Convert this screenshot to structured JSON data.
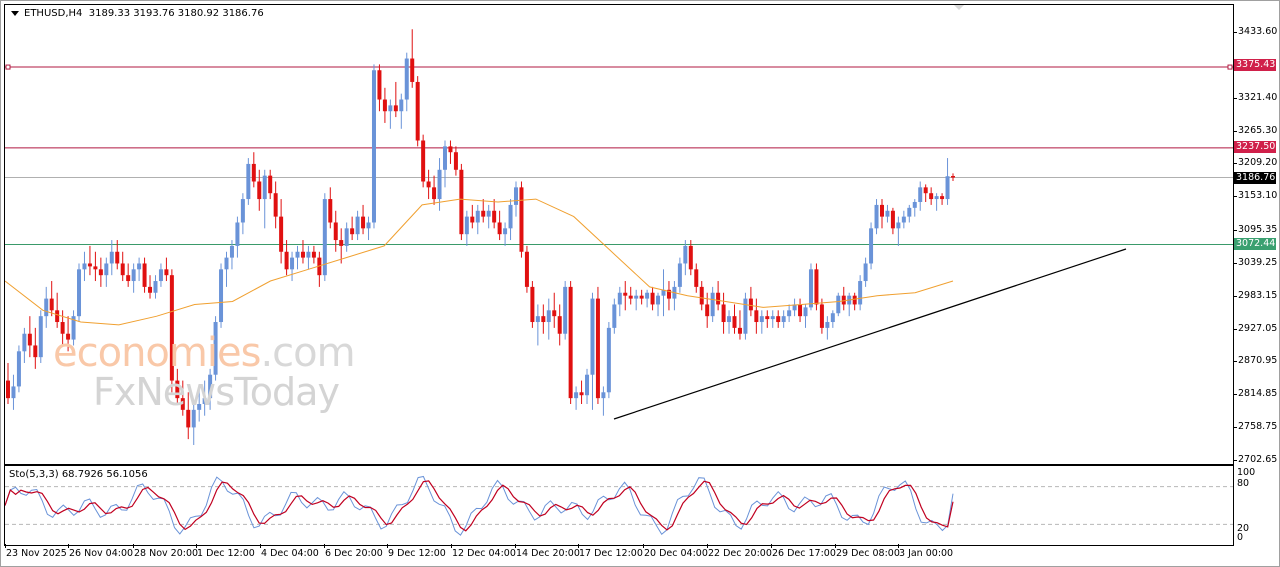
{
  "header": {
    "symbol": "ETHUSD,H4",
    "ohlc": "3189.33 3193.76 3180.92 3186.76"
  },
  "indicator": {
    "label": "Sto(5,3,3) 68.7926 56.1056",
    "levels": [
      "100",
      "80",
      "20",
      "0"
    ]
  },
  "watermark": {
    "line1_a": "economies",
    "line1_b": ".com",
    "line2": "FxNewsToday"
  },
  "colors": {
    "bull": "#6a93d8",
    "bear": "#e01010",
    "ma": "#f0a030",
    "resistance1": "#b01840",
    "resistance2": "#b01840",
    "support": "#3a9a6a",
    "current": "#b0b0b0",
    "trendline": "#000000",
    "sto_main": "#6a93d8",
    "sto_signal": "#c00020"
  },
  "price_axis": {
    "ticks": [
      "3433.60",
      "3321.40",
      "3265.30",
      "3209.20",
      "3153.10",
      "3095.35",
      "3039.25",
      "2983.15",
      "2927.05",
      "2870.95",
      "2814.85",
      "2758.75",
      "2702.65"
    ]
  },
  "price_tags": {
    "r1": "3375.43",
    "r2": "3237.50",
    "current": "3186.76",
    "support": "3072.44"
  },
  "time_axis": {
    "labels": [
      "23 Nov 2025",
      "26 Nov 04:00",
      "28 Nov 20:00",
      "1 Dec 12:00",
      "4 Dec 04:00",
      "6 Dec 20:00",
      "9 Dec 12:00",
      "12 Dec 04:00",
      "14 Dec 20:00",
      "17 Dec 12:00",
      "20 Dec 04:00",
      "22 Dec 20:00",
      "26 Dec 17:00",
      "29 Dec 08:00",
      "3 Jan 00:00"
    ]
  },
  "chart_data": {
    "type": "candlestick",
    "title": "ETHUSD,H4",
    "ohlc_last": {
      "open": 3189.33,
      "high": 3193.76,
      "low": 3180.92,
      "close": 3186.76
    },
    "xlabel": "",
    "ylabel": "",
    "ylim": [
      2702.65,
      3433.6
    ],
    "x_ticks": [
      "23 Nov 2025",
      "26 Nov 04:00",
      "28 Nov 20:00",
      "1 Dec 12:00",
      "4 Dec 04:00",
      "6 Dec 20:00",
      "9 Dec 12:00",
      "12 Dec 04:00",
      "14 Dec 20:00",
      "17 Dec 12:00",
      "20 Dec 04:00",
      "22 Dec 20:00",
      "26 Dec 17:00",
      "29 Dec 08:00",
      "3 Jan 00:00"
    ],
    "horizontal_lines": [
      {
        "name": "resistance",
        "value": 3375.43,
        "color": "#b01840"
      },
      {
        "name": "resistance",
        "value": 3237.5,
        "color": "#b01840"
      },
      {
        "name": "current price",
        "value": 3186.76,
        "color": "#b0b0b0"
      },
      {
        "name": "support",
        "value": 3072.44,
        "color": "#3a9a6a"
      }
    ],
    "trendline": {
      "from": {
        "x": "17 Dec 12:00",
        "y": 2790
      },
      "to": {
        "x": "after 3 Jan",
        "y": 3060
      }
    },
    "moving_average": {
      "color": "#f0a030",
      "approx_path": [
        3010,
        2960,
        2940,
        2935,
        2950,
        2970,
        2975,
        3010,
        3030,
        3050,
        3070,
        3140,
        3150,
        3145,
        3150,
        3120,
        3060,
        3000,
        2985,
        2975,
        2965,
        2970,
        2975,
        2985,
        2990,
        3010
      ]
    },
    "candles_approx": "see candles array",
    "candles": [
      [
        2840,
        2870,
        2800,
        2810
      ],
      [
        2810,
        2850,
        2790,
        2830
      ],
      [
        2830,
        2900,
        2820,
        2890
      ],
      [
        2890,
        2930,
        2870,
        2920
      ],
      [
        2920,
        2950,
        2880,
        2900
      ],
      [
        2900,
        2930,
        2860,
        2880
      ],
      [
        2880,
        2960,
        2870,
        2950
      ],
      [
        2950,
        3000,
        2930,
        2980
      ],
      [
        2980,
        3010,
        2950,
        2960
      ],
      [
        2960,
        2990,
        2930,
        2940
      ],
      [
        2940,
        2960,
        2900,
        2920
      ],
      [
        2920,
        2950,
        2890,
        2910
      ],
      [
        2910,
        2960,
        2900,
        2950
      ],
      [
        2950,
        3040,
        2940,
        3030
      ],
      [
        3030,
        3060,
        3010,
        3040
      ],
      [
        3040,
        3070,
        3020,
        3035
      ],
      [
        3035,
        3060,
        3010,
        3030
      ],
      [
        3030,
        3050,
        3000,
        3020
      ],
      [
        3020,
        3050,
        3000,
        3040
      ],
      [
        3040,
        3080,
        3020,
        3060
      ],
      [
        3060,
        3080,
        3030,
        3040
      ],
      [
        3040,
        3060,
        3010,
        3020
      ],
      [
        3020,
        3040,
        3000,
        3010
      ],
      [
        3010,
        3040,
        2990,
        3030
      ],
      [
        3030,
        3050,
        3010,
        3040
      ],
      [
        3040,
        3050,
        2990,
        3000
      ],
      [
        3000,
        3020,
        2980,
        2990
      ],
      [
        2990,
        3020,
        2980,
        3010
      ],
      [
        3010,
        3040,
        3000,
        3030
      ],
      [
        3030,
        3050,
        3010,
        3020
      ],
      [
        3020,
        3030,
        2820,
        2840
      ],
      [
        2840,
        2860,
        2800,
        2810
      ],
      [
        2810,
        2840,
        2780,
        2790
      ],
      [
        2790,
        2820,
        2740,
        2760
      ],
      [
        2760,
        2800,
        2730,
        2790
      ],
      [
        2790,
        2830,
        2770,
        2800
      ],
      [
        2800,
        2840,
        2780,
        2810
      ],
      [
        2810,
        2860,
        2790,
        2850
      ],
      [
        2850,
        2950,
        2840,
        2940
      ],
      [
        2940,
        3040,
        2930,
        3030
      ],
      [
        3030,
        3060,
        3000,
        3050
      ],
      [
        3050,
        3080,
        3030,
        3070
      ],
      [
        3070,
        3120,
        3050,
        3110
      ],
      [
        3110,
        3160,
        3090,
        3150
      ],
      [
        3150,
        3220,
        3140,
        3210
      ],
      [
        3210,
        3230,
        3170,
        3180
      ],
      [
        3180,
        3200,
        3130,
        3150
      ],
      [
        3150,
        3200,
        3100,
        3190
      ],
      [
        3190,
        3200,
        3150,
        3160
      ],
      [
        3160,
        3180,
        3100,
        3120
      ],
      [
        3120,
        3150,
        3040,
        3060
      ],
      [
        3060,
        3080,
        3020,
        3030
      ],
      [
        3030,
        3060,
        3010,
        3050
      ],
      [
        3050,
        3070,
        3030,
        3060
      ],
      [
        3060,
        3080,
        3040,
        3050
      ],
      [
        3050,
        3070,
        3030,
        3060
      ],
      [
        3060,
        3070,
        3040,
        3050
      ],
      [
        3050,
        3060,
        3000,
        3020
      ],
      [
        3020,
        3160,
        3010,
        3150
      ],
      [
        3150,
        3170,
        3100,
        3110
      ],
      [
        3110,
        3130,
        3060,
        3080
      ],
      [
        3080,
        3100,
        3040,
        3070
      ],
      [
        3070,
        3110,
        3060,
        3100
      ],
      [
        3100,
        3120,
        3080,
        3090
      ],
      [
        3090,
        3130,
        3080,
        3120
      ],
      [
        3120,
        3140,
        3090,
        3100
      ],
      [
        3100,
        3120,
        3080,
        3110
      ],
      [
        3110,
        3380,
        3100,
        3370
      ],
      [
        3370,
        3380,
        3300,
        3320
      ],
      [
        3320,
        3340,
        3280,
        3300
      ],
      [
        3300,
        3320,
        3270,
        3310
      ],
      [
        3310,
        3350,
        3290,
        3300
      ],
      [
        3300,
        3330,
        3270,
        3320
      ],
      [
        3320,
        3400,
        3300,
        3390
      ],
      [
        3390,
        3440,
        3340,
        3350
      ],
      [
        3350,
        3360,
        3240,
        3250
      ],
      [
        3250,
        3260,
        3170,
        3180
      ],
      [
        3180,
        3200,
        3150,
        3170
      ],
      [
        3170,
        3190,
        3140,
        3150
      ],
      [
        3150,
        3220,
        3130,
        3200
      ],
      [
        3200,
        3250,
        3170,
        3240
      ],
      [
        3240,
        3250,
        3210,
        3230
      ],
      [
        3230,
        3240,
        3190,
        3200
      ],
      [
        3200,
        3210,
        3080,
        3090
      ],
      [
        3090,
        3130,
        3070,
        3120
      ],
      [
        3120,
        3140,
        3100,
        3110
      ],
      [
        3110,
        3140,
        3090,
        3130
      ],
      [
        3130,
        3150,
        3110,
        3120
      ],
      [
        3120,
        3140,
        3100,
        3130
      ],
      [
        3130,
        3150,
        3100,
        3110
      ],
      [
        3110,
        3130,
        3080,
        3090
      ],
      [
        3090,
        3110,
        3070,
        3100
      ],
      [
        3100,
        3150,
        3080,
        3140
      ],
      [
        3140,
        3180,
        3120,
        3170
      ],
      [
        3170,
        3180,
        3050,
        3060
      ],
      [
        3060,
        3070,
        2990,
        3000
      ],
      [
        3000,
        3010,
        2930,
        2940
      ],
      [
        2940,
        2970,
        2900,
        2950
      ],
      [
        2950,
        2970,
        2920,
        2940
      ],
      [
        2940,
        2980,
        2910,
        2960
      ],
      [
        2960,
        2990,
        2930,
        2950
      ],
      [
        2950,
        2970,
        2900,
        2920
      ],
      [
        2920,
        3010,
        2910,
        3000
      ],
      [
        3000,
        3010,
        2800,
        2810
      ],
      [
        2810,
        2830,
        2790,
        2820
      ],
      [
        2820,
        2840,
        2800,
        2815
      ],
      [
        2815,
        2860,
        2800,
        2850
      ],
      [
        2850,
        2990,
        2790,
        2980
      ],
      [
        2980,
        3000,
        2800,
        2810
      ],
      [
        2810,
        2830,
        2780,
        2820
      ],
      [
        2820,
        2940,
        2810,
        2930
      ],
      [
        2930,
        2980,
        2920,
        2970
      ],
      [
        2970,
        3000,
        2950,
        2990
      ],
      [
        2990,
        3010,
        2960,
        2985
      ],
      [
        2985,
        3000,
        2970,
        2980
      ],
      [
        2980,
        2995,
        2960,
        2985
      ],
      [
        2985,
        2995,
        2970,
        2980
      ],
      [
        2980,
        2995,
        2965,
        2990
      ],
      [
        2990,
        3000,
        2960,
        2970
      ],
      [
        2970,
        2990,
        2950,
        2985
      ],
      [
        2985,
        3030,
        2950,
        2995
      ],
      [
        2995,
        3010,
        2960,
        2980
      ],
      [
        2980,
        3010,
        2960,
        3000
      ],
      [
        3000,
        3050,
        2990,
        3040
      ],
      [
        3040,
        3080,
        3020,
        3070
      ],
      [
        3070,
        3080,
        3020,
        3030
      ],
      [
        3030,
        3040,
        2990,
        3000
      ],
      [
        3000,
        3010,
        2960,
        2970
      ],
      [
        2970,
        2990,
        2930,
        2950
      ],
      [
        2950,
        3000,
        2940,
        2990
      ],
      [
        2990,
        3010,
        2960,
        2970
      ],
      [
        2970,
        2990,
        2920,
        2940
      ],
      [
        2940,
        2960,
        2920,
        2950
      ],
      [
        2950,
        2970,
        2920,
        2930
      ],
      [
        2930,
        2960,
        2910,
        2920
      ],
      [
        2920,
        2990,
        2910,
        2980
      ],
      [
        2980,
        3000,
        2950,
        2960
      ],
      [
        2960,
        2980,
        2920,
        2940
      ],
      [
        2940,
        2960,
        2920,
        2950
      ],
      [
        2950,
        2960,
        2930,
        2945
      ],
      [
        2945,
        2960,
        2930,
        2950
      ],
      [
        2950,
        2960,
        2930,
        2940
      ],
      [
        2940,
        2960,
        2930,
        2950
      ],
      [
        2950,
        2970,
        2940,
        2960
      ],
      [
        2960,
        2980,
        2950,
        2970
      ],
      [
        2970,
        2980,
        2940,
        2950
      ],
      [
        2950,
        2970,
        2930,
        2965
      ],
      [
        2965,
        3040,
        2960,
        3030
      ],
      [
        3030,
        3040,
        2960,
        2970
      ],
      [
        2970,
        2980,
        2920,
        2930
      ],
      [
        2930,
        2950,
        2910,
        2940
      ],
      [
        2940,
        2960,
        2930,
        2955
      ],
      [
        2955,
        2990,
        2950,
        2985
      ],
      [
        2985,
        3000,
        2960,
        2970
      ],
      [
        2970,
        2990,
        2950,
        2985
      ],
      [
        2985,
        2990,
        2960,
        2970
      ],
      [
        2970,
        3020,
        2960,
        3010
      ],
      [
        3010,
        3050,
        3000,
        3040
      ],
      [
        3040,
        3110,
        3030,
        3100
      ],
      [
        3100,
        3150,
        3090,
        3140
      ],
      [
        3140,
        3150,
        3100,
        3120
      ],
      [
        3120,
        3140,
        3110,
        3130
      ],
      [
        3130,
        3135,
        3090,
        3100
      ],
      [
        3100,
        3120,
        3070,
        3110
      ],
      [
        3110,
        3130,
        3100,
        3120
      ],
      [
        3120,
        3140,
        3110,
        3135
      ],
      [
        3135,
        3150,
        3120,
        3145
      ],
      [
        3145,
        3180,
        3130,
        3170
      ],
      [
        3170,
        3175,
        3145,
        3160
      ],
      [
        3160,
        3170,
        3140,
        3150
      ],
      [
        3150,
        3160,
        3130,
        3155
      ],
      [
        3155,
        3160,
        3140,
        3150
      ],
      [
        3150,
        3220,
        3140,
        3189
      ],
      [
        3189.33,
        3193.76,
        3180.92,
        3186.76
      ]
    ],
    "stochastic": {
      "params": "5,3,3",
      "main": 68.7926,
      "signal": 56.1056,
      "levels": [
        80,
        20
      ],
      "ylim": [
        0,
        100
      ]
    }
  }
}
